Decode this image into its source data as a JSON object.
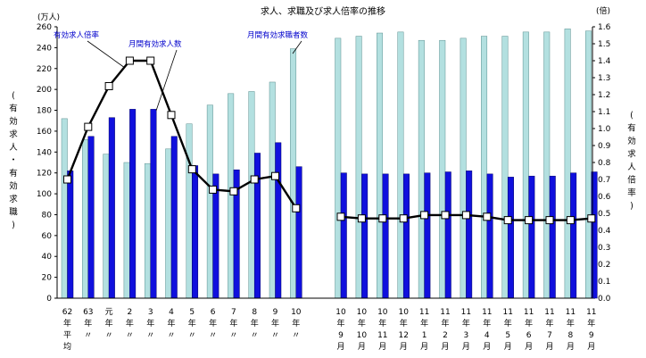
{
  "chart_data": {
    "type": "bar",
    "title": "求人、求職及び求人倍率の推移",
    "left_unit": "(万人)",
    "right_unit": "(倍)",
    "left_axis_label": "(有効求人・有効求職)",
    "right_axis_label": "(有効求人倍率)",
    "ylim_left": [
      0,
      260
    ],
    "ylim_right": [
      0.0,
      1.6
    ],
    "left_ticks": [
      "0",
      "20",
      "40",
      "60",
      "80",
      "100",
      "120",
      "140",
      "160",
      "180",
      "200",
      "220",
      "240",
      "260"
    ],
    "right_ticks": [
      "0.0",
      "0.1",
      "0.2",
      "0.3",
      "0.4",
      "0.5",
      "0.6",
      "0.7",
      "0.8",
      "0.9",
      "1.0",
      "1.1",
      "1.2",
      "1.3",
      "1.4",
      "1.5",
      "1.6"
    ],
    "categories": [
      {
        "lines": [
          "62",
          "年",
          "平",
          "均"
        ]
      },
      {
        "lines": [
          "63",
          "年",
          "〃"
        ]
      },
      {
        "lines": [
          "元",
          "年",
          "〃"
        ]
      },
      {
        "lines": [
          "2",
          "年",
          "〃"
        ]
      },
      {
        "lines": [
          "3",
          "年",
          "〃"
        ]
      },
      {
        "lines": [
          "4",
          "年",
          "〃"
        ]
      },
      {
        "lines": [
          "5",
          "年",
          "〃"
        ]
      },
      {
        "lines": [
          "6",
          "年",
          "〃"
        ]
      },
      {
        "lines": [
          "7",
          "年",
          "〃"
        ]
      },
      {
        "lines": [
          "8",
          "年",
          "〃"
        ]
      },
      {
        "lines": [
          "9",
          "年",
          "〃"
        ]
      },
      {
        "lines": [
          "10",
          "年",
          "〃"
        ]
      },
      {
        "lines": [
          "10",
          "年",
          "9",
          "月"
        ]
      },
      {
        "lines": [
          "10",
          "年",
          "10",
          "月"
        ]
      },
      {
        "lines": [
          "10",
          "年",
          "11",
          "月"
        ]
      },
      {
        "lines": [
          "10",
          "年",
          "12",
          "月"
        ]
      },
      {
        "lines": [
          "11",
          "年",
          "1",
          "月"
        ]
      },
      {
        "lines": [
          "11",
          "年",
          "2",
          "月"
        ]
      },
      {
        "lines": [
          "11",
          "年",
          "3",
          "月"
        ]
      },
      {
        "lines": [
          "11",
          "年",
          "4",
          "月"
        ]
      },
      {
        "lines": [
          "11",
          "年",
          "5",
          "月"
        ]
      },
      {
        "lines": [
          "11",
          "年",
          "6",
          "月"
        ]
      },
      {
        "lines": [
          "11",
          "年",
          "7",
          "月"
        ]
      },
      {
        "lines": [
          "11",
          "年",
          "8",
          "月"
        ]
      },
      {
        "lines": [
          "11",
          "年",
          "9",
          "月"
        ]
      }
    ],
    "series": [
      {
        "name": "月間有効求職者数",
        "type": "bar",
        "axis": "left",
        "color": "#b3e0e0",
        "values": [
          172,
          152,
          138,
          130,
          129,
          143,
          167,
          185,
          196,
          198,
          207,
          239,
          249,
          251,
          254,
          255,
          247,
          247,
          249,
          251,
          251,
          255,
          255,
          258,
          256
        ]
      },
      {
        "name": "月間有効求人数",
        "type": "bar",
        "axis": "left",
        "color": "#1010dd",
        "values": [
          122,
          155,
          173,
          181,
          181,
          155,
          127,
          119,
          123,
          139,
          149,
          126,
          120,
          119,
          119,
          119,
          120,
          121,
          122,
          119,
          116,
          117,
          117,
          120,
          121
        ]
      },
      {
        "name": "有効求人倍率",
        "type": "line",
        "axis": "right",
        "color": "#000000",
        "values": [
          0.7,
          1.01,
          1.25,
          1.4,
          1.4,
          1.08,
          0.76,
          0.64,
          0.63,
          0.7,
          0.72,
          0.53,
          0.48,
          0.47,
          0.47,
          0.47,
          0.49,
          0.49,
          0.49,
          0.48,
          0.46,
          0.46,
          0.46,
          0.46,
          0.47
        ]
      }
    ],
    "annotations": [
      "有効求人倍率",
      "月間有効求人数",
      "月間有効求職者数"
    ],
    "legend": "none",
    "grid": false
  }
}
